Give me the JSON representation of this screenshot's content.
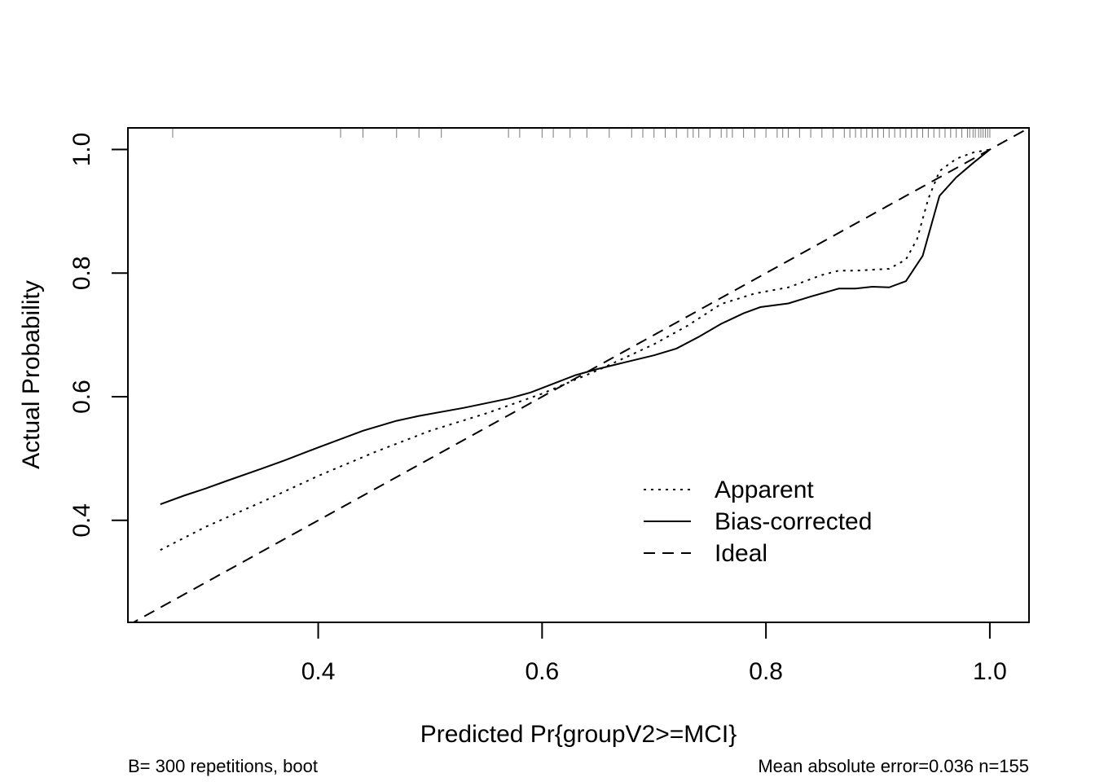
{
  "chart_data": {
    "type": "line",
    "title": "",
    "xlabel": "Predicted Pr{groupV2>=MCI}",
    "ylabel": "Actual Probability",
    "xlim": [
      0.23,
      1.035
    ],
    "ylim": [
      0.235,
      1.035
    ],
    "x_ticks": [
      0.4,
      0.6,
      0.8,
      1.0
    ],
    "x_tick_labels": [
      "0.4",
      "0.6",
      "0.8",
      "1.0"
    ],
    "y_ticks": [
      0.4,
      0.6,
      0.8,
      1.0
    ],
    "y_tick_labels": [
      "0.4",
      "0.6",
      "0.8",
      "1.0"
    ],
    "grid": false,
    "legend": "bottom-right",
    "series": [
      {
        "name": "Apparent",
        "line_style": "dotted",
        "x": [
          0.259,
          0.3,
          0.35,
          0.4,
          0.45,
          0.5,
          0.55,
          0.6,
          0.65,
          0.7,
          0.73,
          0.76,
          0.79,
          0.82,
          0.85,
          0.865,
          0.88,
          0.91,
          0.925,
          0.935,
          0.945,
          0.955,
          0.97,
          0.985,
          1.0
        ],
        "y": [
          0.352,
          0.39,
          0.43,
          0.472,
          0.51,
          0.545,
          0.573,
          0.605,
          0.643,
          0.685,
          0.715,
          0.75,
          0.767,
          0.777,
          0.797,
          0.804,
          0.804,
          0.807,
          0.822,
          0.855,
          0.92,
          0.965,
          0.985,
          0.995,
          1.0
        ]
      },
      {
        "name": "Bias-corrected",
        "line_style": "solid",
        "x": [
          0.259,
          0.28,
          0.3,
          0.32,
          0.35,
          0.37,
          0.4,
          0.44,
          0.47,
          0.49,
          0.53,
          0.57,
          0.59,
          0.61,
          0.63,
          0.65,
          0.67,
          0.7,
          0.72,
          0.74,
          0.76,
          0.78,
          0.795,
          0.82,
          0.84,
          0.865,
          0.88,
          0.895,
          0.91,
          0.925,
          0.94,
          0.955,
          0.97,
          0.985,
          1.0
        ],
        "y": [
          0.426,
          0.44,
          0.452,
          0.465,
          0.484,
          0.497,
          0.518,
          0.545,
          0.561,
          0.569,
          0.582,
          0.597,
          0.607,
          0.621,
          0.635,
          0.645,
          0.654,
          0.667,
          0.678,
          0.697,
          0.718,
          0.735,
          0.745,
          0.751,
          0.762,
          0.775,
          0.775,
          0.778,
          0.777,
          0.787,
          0.828,
          0.925,
          0.955,
          0.978,
          1.0
        ]
      },
      {
        "name": "Ideal",
        "line_style": "dashed",
        "x": [
          0.23,
          1.035
        ],
        "y": [
          0.23,
          1.035
        ]
      }
    ],
    "rug_x": [
      0.27,
      0.42,
      0.44,
      0.47,
      0.49,
      0.51,
      0.57,
      0.58,
      0.6,
      0.61,
      0.625,
      0.64,
      0.66,
      0.68,
      0.69,
      0.7,
      0.71,
      0.72,
      0.73,
      0.735,
      0.74,
      0.75,
      0.76,
      0.765,
      0.77,
      0.78,
      0.79,
      0.8,
      0.81,
      0.815,
      0.82,
      0.83,
      0.84,
      0.85,
      0.86,
      0.87,
      0.875,
      0.88,
      0.885,
      0.89,
      0.895,
      0.9,
      0.905,
      0.91,
      0.915,
      0.92,
      0.925,
      0.93,
      0.935,
      0.94,
      0.945,
      0.95,
      0.955,
      0.96,
      0.965,
      0.97,
      0.975,
      0.98,
      0.982,
      0.985,
      0.987,
      0.99,
      0.992,
      0.994,
      0.996,
      0.998,
      1.0
    ],
    "footnote_left": "B= 300 repetitions, boot",
    "footnote_right": "Mean absolute error=0.036 n=155"
  }
}
